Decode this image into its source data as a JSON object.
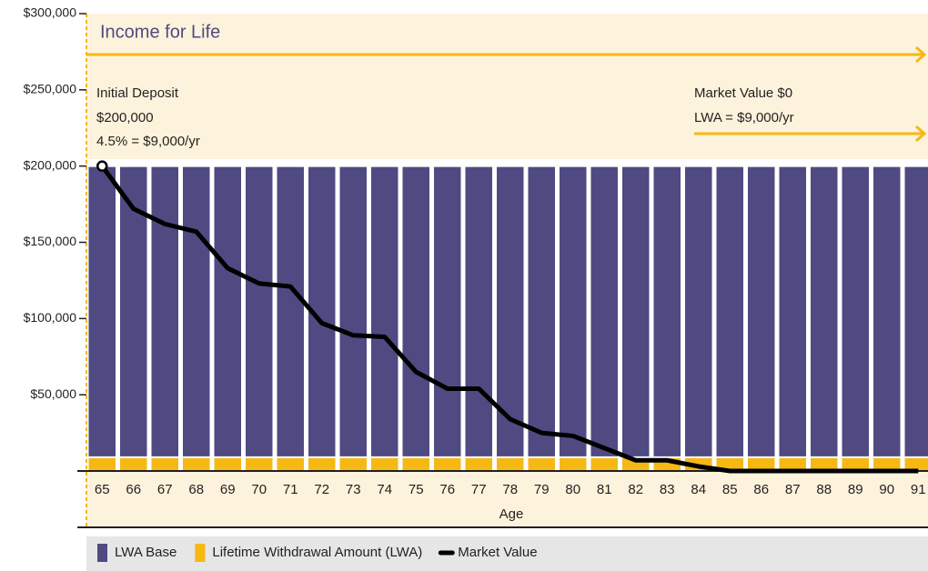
{
  "chart_data": {
    "type": "bar",
    "annotations": [
      "Income for Life",
      "Initial Deposit",
      "$200,000",
      "4.5% = $9,000/yr",
      "Market Value $0",
      "LWA = $9,000/yr"
    ],
    "xlabel": "Age",
    "categories": [
      "65",
      "66",
      "67",
      "68",
      "69",
      "70",
      "71",
      "72",
      "73",
      "74",
      "75",
      "76",
      "77",
      "78",
      "79",
      "80",
      "81",
      "82",
      "83",
      "84",
      "85",
      "86",
      "87",
      "88",
      "89",
      "90",
      "91"
    ],
    "series": [
      {
        "name": "LWA Base",
        "type": "bar",
        "color": "#4f4a82",
        "values": [
          200000,
          200000,
          200000,
          200000,
          200000,
          200000,
          200000,
          200000,
          200000,
          200000,
          200000,
          200000,
          200000,
          200000,
          200000,
          200000,
          200000,
          200000,
          200000,
          200000,
          200000,
          200000,
          200000,
          200000,
          200000,
          200000,
          200000
        ]
      },
      {
        "name": "Lifetime Withdrawal Amount (LWA)",
        "type": "bar",
        "color": "#f6b813",
        "values": [
          9000,
          9000,
          9000,
          9000,
          9000,
          9000,
          9000,
          9000,
          9000,
          9000,
          9000,
          9000,
          9000,
          9000,
          9000,
          9000,
          9000,
          9000,
          9000,
          9000,
          9000,
          9000,
          9000,
          9000,
          9000,
          9000,
          9000
        ]
      },
      {
        "name": "Market Value",
        "type": "line",
        "color": "#000000",
        "values": [
          200000,
          172000,
          162000,
          157000,
          133000,
          123000,
          121000,
          97000,
          89000,
          88000,
          65000,
          54000,
          54000,
          34000,
          25000,
          23000,
          15000,
          7000,
          7000,
          3000,
          0,
          0,
          0,
          0,
          0,
          0,
          0
        ]
      }
    ],
    "ylim": [
      0,
      300000
    ],
    "yticks": [
      {
        "value": 50000,
        "label": "$50,000"
      },
      {
        "value": 100000,
        "label": "$100,000"
      },
      {
        "value": 150000,
        "label": "$150,000"
      },
      {
        "value": 200000,
        "label": "$200,000"
      },
      {
        "value": 250000,
        "label": "$250,000"
      },
      {
        "value": 300000,
        "label": "$300,000"
      }
    ],
    "legend": "bottom"
  }
}
